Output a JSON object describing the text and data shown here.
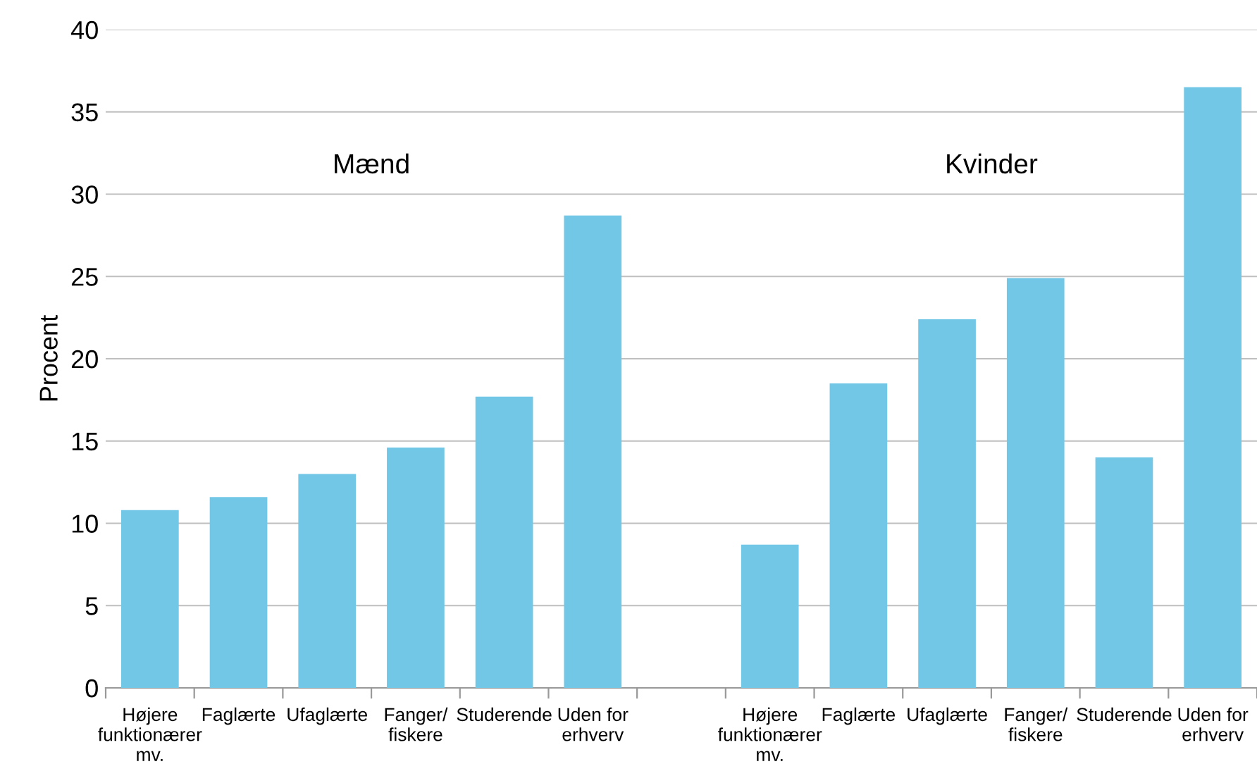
{
  "chart_data": {
    "type": "bar",
    "ylabel": "Procent",
    "categories": [
      "Højere\nfunktionærer\nmv.",
      "Faglærte",
      "Ufaglærte",
      "Fanger/\nfiskere",
      "Studerende",
      "Uden for\nerhverv",
      null,
      "Højere\nfunktionærer\nmv.",
      "Faglærte",
      "Ufaglærte",
      "Fanger/\nfiskere",
      "Studerende",
      "Uden for\nerhverv"
    ],
    "values": [
      10.8,
      11.6,
      13.0,
      14.6,
      17.7,
      28.7,
      null,
      8.7,
      18.5,
      22.4,
      24.9,
      14.0,
      36.5
    ],
    "color": "#72c7e7",
    "ylim": [
      0,
      40
    ],
    "yticks": [
      0,
      5,
      10,
      15,
      20,
      25,
      30,
      35,
      40
    ],
    "grid": "y",
    "legend": false,
    "annotations": [
      "Mænd",
      "Kvinder"
    ]
  }
}
